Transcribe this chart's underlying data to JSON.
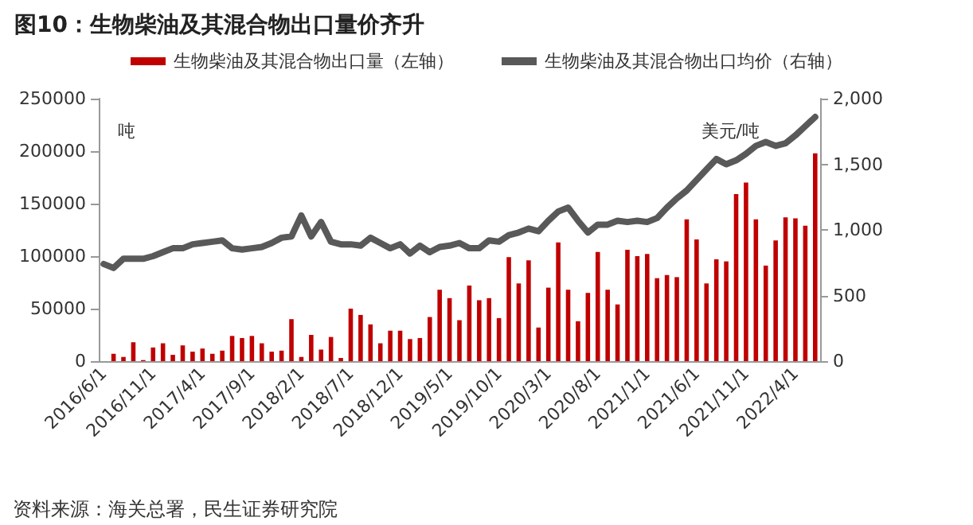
{
  "chart_data": {
    "type": "bar",
    "title": "图10：生物柴油及其混合物出口量价齐升",
    "ylabel": "吨",
    "y2label": "美元/吨",
    "annotations": [
      "资料来源：海关总署，民生证券研究院"
    ],
    "categories": [
      "2016/6/1",
      null,
      null,
      null,
      null,
      "2016/11/1",
      null,
      null,
      null,
      null,
      "2017/4/1",
      null,
      null,
      null,
      null,
      "2017/9/1",
      null,
      null,
      null,
      null,
      "2018/2/1",
      null,
      null,
      null,
      null,
      "2018/7/1",
      null,
      null,
      null,
      null,
      "2018/12/1",
      null,
      null,
      null,
      null,
      "2019/5/1",
      null,
      null,
      null,
      null,
      "2019/10/1",
      null,
      null,
      null,
      null,
      "2020/3/1",
      null,
      null,
      null,
      null,
      "2020/8/1",
      null,
      null,
      null,
      null,
      "2021/1/1",
      null,
      null,
      null,
      null,
      "2021/6/1",
      null,
      null,
      null,
      null,
      "2021/11/1",
      null,
      null,
      null,
      null,
      "2022/4/1",
      null,
      null
    ],
    "series": [
      {
        "name": "生物柴油及其混合物出口量（左轴）",
        "color": "#c00000",
        "values": [
          0,
          7000,
          4000,
          18000,
          1000,
          13000,
          17000,
          6000,
          15000,
          9000,
          12000,
          7000,
          10000,
          24000,
          22000,
          24000,
          17000,
          9000,
          10000,
          40000,
          4000,
          25000,
          11000,
          23000,
          3000,
          50000,
          44000,
          35000,
          17000,
          29000,
          29000,
          21000,
          22000,
          42000,
          68000,
          60000,
          39000,
          72000,
          58000,
          60000,
          41000,
          99000,
          74000,
          96000,
          32000,
          70000,
          113000,
          68000,
          38000,
          65000,
          104000,
          68000,
          54000,
          106000,
          100000,
          102000,
          79000,
          82000,
          80000,
          135000,
          116000,
          74000,
          97000,
          95000,
          159000,
          170000,
          135000,
          91000,
          115000,
          137000,
          136000,
          129000,
          198000
        ]
      },
      {
        "name": "生物柴油及其混合物出口均价（右轴）",
        "type": "line",
        "axis": "y2",
        "color": "#595959",
        "values": [
          740,
          710,
          780,
          780,
          780,
          800,
          830,
          860,
          860,
          890,
          900,
          910,
          920,
          860,
          850,
          860,
          870,
          900,
          940,
          950,
          1110,
          950,
          1060,
          910,
          890,
          890,
          880,
          940,
          900,
          860,
          890,
          820,
          880,
          830,
          870,
          880,
          900,
          860,
          860,
          920,
          910,
          960,
          980,
          1010,
          990,
          1070,
          1140,
          1170,
          1070,
          980,
          1040,
          1040,
          1070,
          1060,
          1070,
          1060,
          1090,
          1170,
          1240,
          1300,
          1380,
          1460,
          1540,
          1500,
          1530,
          1580,
          1640,
          1670,
          1640,
          1660,
          1720,
          1790,
          1860
        ]
      }
    ],
    "ylim": [
      0,
      250000
    ],
    "yticks": [
      0,
      50000,
      100000,
      150000,
      200000,
      250000
    ],
    "y2lim": [
      0,
      2000
    ],
    "y2ticks": [
      0,
      {
        "value": 500,
        "label": "500"
      },
      {
        "value": 1000,
        "label": "1,000"
      },
      {
        "value": 1500,
        "label": "1,500"
      },
      {
        "value": 2000,
        "label": "2,000"
      }
    ],
    "legend": "top",
    "grid": false,
    "marker": "none",
    "line_style": "solid"
  }
}
